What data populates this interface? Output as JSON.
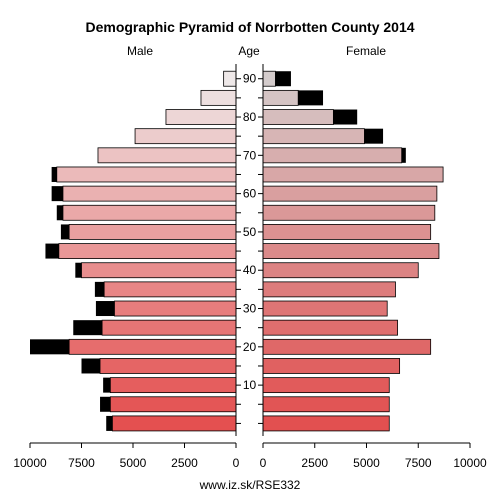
{
  "chart_data": {
    "type": "bar",
    "title": "Demographic Pyramid of Norrbotten County 2014",
    "left_label": "Male",
    "center_label": "Age",
    "right_label": "Female",
    "footer": "www.iz.sk/RSE332",
    "age_ticks": [
      "90",
      "80",
      "70",
      "60",
      "50",
      "40",
      "30",
      "20",
      "10"
    ],
    "x_ticks_male": [
      "10000",
      "7500",
      "5000",
      "2500",
      "0"
    ],
    "x_ticks_female": [
      "0",
      "2500",
      "5000",
      "7500",
      "10000"
    ],
    "xlim": [
      0,
      10000
    ],
    "groups": [
      "0-4",
      "5-9",
      "10-14",
      "15-19",
      "20-24",
      "25-29",
      "30-34",
      "35-39",
      "40-44",
      "45-49",
      "50-54",
      "55-59",
      "60-64",
      "65-69",
      "70-74",
      "75-79",
      "80-84",
      "85-89",
      "90+"
    ],
    "series": [
      {
        "name": "Male",
        "base": [
          6000,
          6100,
          6100,
          6600,
          8100,
          6500,
          5900,
          6400,
          7500,
          8600,
          8100,
          8400,
          8400,
          8700,
          6700,
          4900,
          3400,
          1700,
          600
        ],
        "surplus": [
          300,
          500,
          350,
          900,
          1900,
          1400,
          900,
          450,
          300,
          650,
          400,
          300,
          550,
          250,
          0,
          0,
          0,
          0,
          0
        ]
      },
      {
        "name": "Female",
        "base": [
          6100,
          6100,
          6100,
          6600,
          8100,
          6500,
          6000,
          6400,
          7500,
          8500,
          8100,
          8300,
          8400,
          8700,
          6700,
          4900,
          3400,
          1700,
          600
        ],
        "surplus": [
          0,
          0,
          0,
          0,
          0,
          0,
          0,
          0,
          0,
          0,
          0,
          0,
          0,
          0,
          200,
          900,
          1150,
          1200,
          750
        ]
      }
    ]
  }
}
